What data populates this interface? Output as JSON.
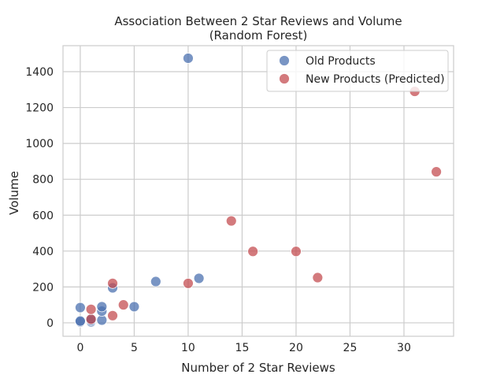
{
  "chart_data": {
    "type": "scatter",
    "title_line1": "Association Between 2 Star Reviews and Volume",
    "title_line2": "(Random Forest)",
    "xlabel": "Number of 2 Star Reviews",
    "ylabel": "Volume",
    "xlim": [
      -1.6,
      34.6
    ],
    "ylim": [
      -75,
      1545
    ],
    "xticks": [
      0,
      5,
      10,
      15,
      20,
      25,
      30
    ],
    "yticks": [
      0,
      200,
      400,
      600,
      800,
      1000,
      1200,
      1400
    ],
    "grid": true,
    "legend_position": "top-right",
    "series": [
      {
        "name": "Old Products",
        "color": "#4c72b0",
        "points": [
          [
            0,
            5
          ],
          [
            0,
            10
          ],
          [
            0,
            85
          ],
          [
            1,
            5
          ],
          [
            1,
            12
          ],
          [
            1,
            20
          ],
          [
            2,
            15
          ],
          [
            2,
            65
          ],
          [
            2,
            90
          ],
          [
            3,
            195
          ],
          [
            5,
            90
          ],
          [
            7,
            230
          ],
          [
            10,
            1475
          ],
          [
            11,
            248
          ]
        ]
      },
      {
        "name": "New Products (Predicted)",
        "color": "#c44e52",
        "points": [
          [
            1,
            20
          ],
          [
            1,
            75
          ],
          [
            3,
            40
          ],
          [
            3,
            220
          ],
          [
            4,
            100
          ],
          [
            10,
            220
          ],
          [
            14,
            568
          ],
          [
            16,
            398
          ],
          [
            20,
            398
          ],
          [
            22,
            252
          ],
          [
            31,
            1290
          ],
          [
            33,
            842
          ]
        ]
      }
    ]
  }
}
